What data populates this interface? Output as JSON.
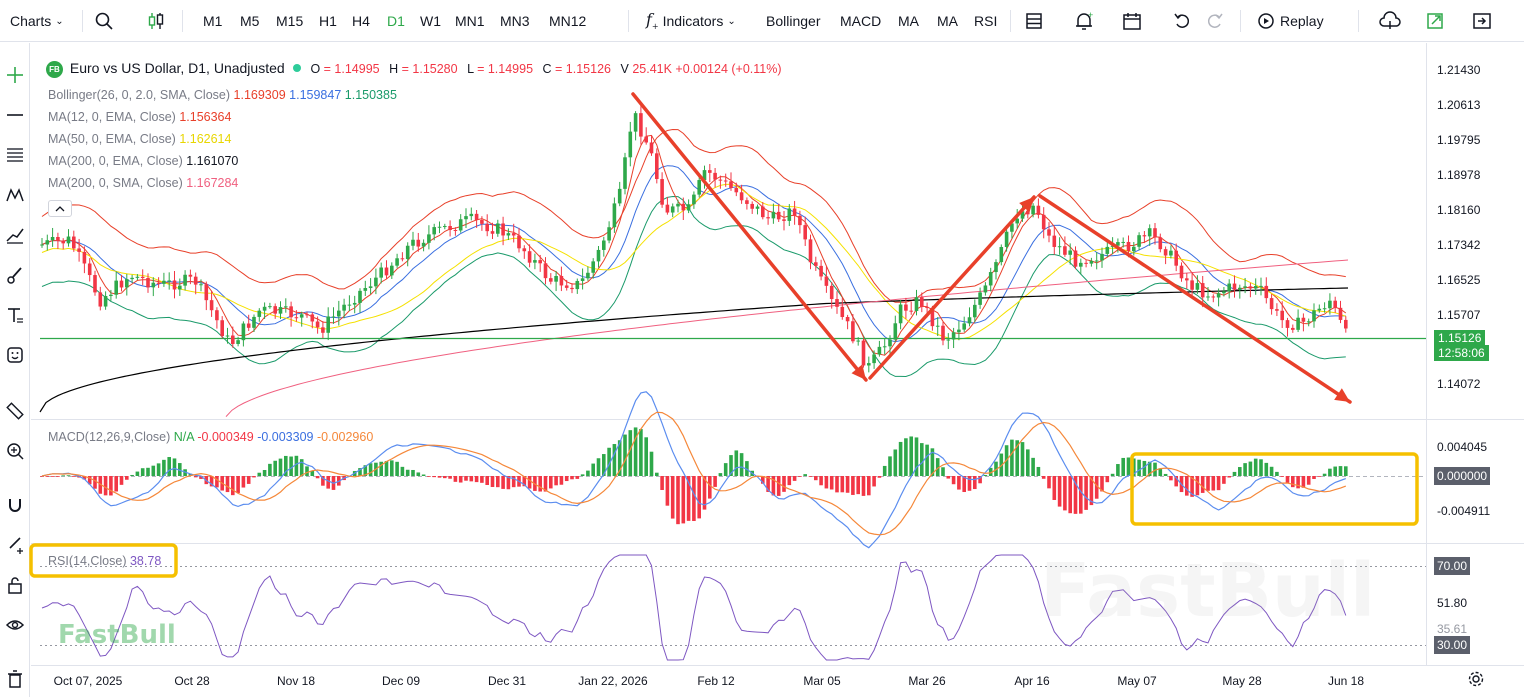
{
  "toolbar": {
    "charts_label": "Charts",
    "timeframes": [
      "M1",
      "M5",
      "M15",
      "H1",
      "H4",
      "D1",
      "W1",
      "MN1",
      "MN3",
      "MN12"
    ],
    "active_timeframe": "D1",
    "indicators_label": "Indicators",
    "quick_indicators": [
      "Bollinger",
      "MACD",
      "MA",
      "MA",
      "RSI"
    ],
    "replay_label": "Replay"
  },
  "legend": {
    "badge": "FB",
    "symbol": "Euro vs US Dollar, D1, Unadjusted",
    "o_label": "O",
    "o_value": "= 1.14995",
    "h_label": "H",
    "h_value": "= 1.15280",
    "l_label": "L",
    "l_value": "= 1.14995",
    "c_label": "C",
    "c_value": "= 1.15126",
    "v_label": "V",
    "v_value": "25.41K",
    "change": "+0.00124 (+0.11%)",
    "bollinger_name": "Bollinger(26, 0, 2.0, SMA, Close)",
    "bollinger_upper": "1.169309",
    "bollinger_mid": "1.159847",
    "bollinger_lower": "1.150385",
    "ma1_name": "MA(12, 0, EMA, Close)",
    "ma1_value": "1.156364",
    "ma2_name": "MA(50, 0, EMA, Close)",
    "ma2_value": "1.162614",
    "ma3_name": "MA(200, 0, EMA, Close)",
    "ma3_value": "1.161070",
    "ma4_name": "MA(200, 0, SMA, Close)",
    "ma4_value": "1.167284"
  },
  "price_axis": [
    "1.21430",
    "1.20613",
    "1.19795",
    "1.18978",
    "1.18160",
    "1.17342",
    "1.16525",
    "1.15707",
    "1.14072"
  ],
  "last_price": "1.15126",
  "countdown": "12:58:06",
  "macd": {
    "name": "MACD(12,26,9,Close)",
    "na": "N/A",
    "v1": "-0.000349",
    "v2": "-0.003309",
    "v3": "-0.002960",
    "axis": [
      "0.004045",
      "0.000000",
      "-0.004911"
    ]
  },
  "rsi": {
    "name": "RSI(14,Close)",
    "value": "38.78",
    "axis_top": "70.00",
    "axis_mid": "51.80",
    "axis_low": "30.00",
    "axis_partial": "35.61"
  },
  "x_axis": [
    "Oct 07, 2025",
    "Oct 28",
    "Nov 18",
    "Dec 09",
    "Dec 31",
    "Jan 22, 2026",
    "Feb 12",
    "Mar 05",
    "Mar 26",
    "Apr 16",
    "May 07",
    "May 28",
    "Jun 18"
  ],
  "watermark": "FastBull",
  "colors": {
    "up": "#2ea84a",
    "down": "#f23645",
    "accent": "#2ea84a",
    "arrow": "#e8402a",
    "highlight": "#f5c000",
    "bb_upper": "#e8402a",
    "bb_mid": "#3a6fe0",
    "bb_lower": "#1a9a6a",
    "ma12": "#e8402a",
    "ma50": "#f5e100",
    "ema200": "#000000",
    "sma200": "#f06080",
    "macd_line": "#5b8def",
    "signal_line": "#f5883a",
    "rsi_line": "#7e57c2"
  },
  "chart_data": {
    "type": "candlestick",
    "title": "Euro vs US Dollar, D1, Unadjusted",
    "ylim": [
      1.134,
      1.218
    ],
    "key_points": [
      {
        "x": "Jan 22, 2026",
        "y": 1.2081
      },
      {
        "x": "Mar 05",
        "y": 1.1407
      },
      {
        "x": "Apr 16",
        "y": 1.1862
      },
      {
        "x": "Jun 18",
        "y": 1.1513
      }
    ]
  }
}
